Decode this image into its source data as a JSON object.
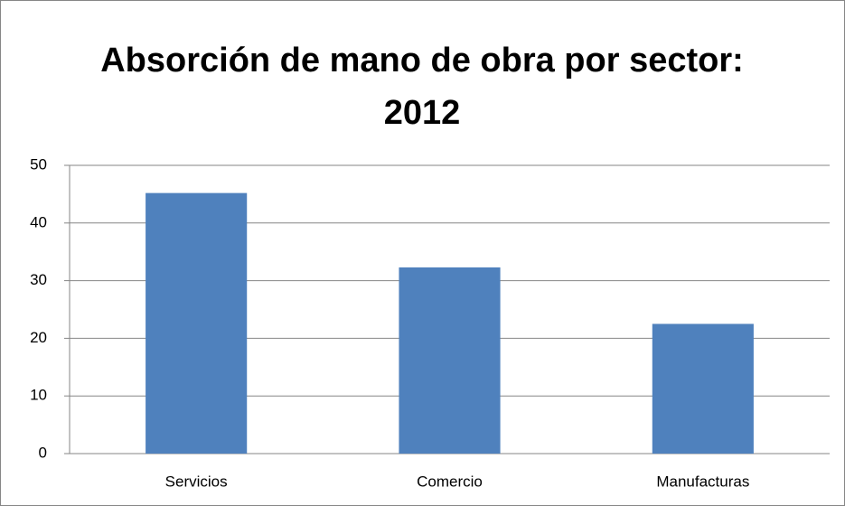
{
  "chart_data": {
    "type": "bar",
    "title": "Absorción de mano de obra por sector: 2012",
    "categories": [
      "Servicios",
      "Comercio",
      "Manufacturas"
    ],
    "values": [
      45.2,
      32.3,
      22.5
    ],
    "color": "#4f81bd",
    "ylim": [
      0,
      50
    ],
    "yticks": [
      0,
      10,
      20,
      30,
      40,
      50
    ],
    "grid": true
  }
}
